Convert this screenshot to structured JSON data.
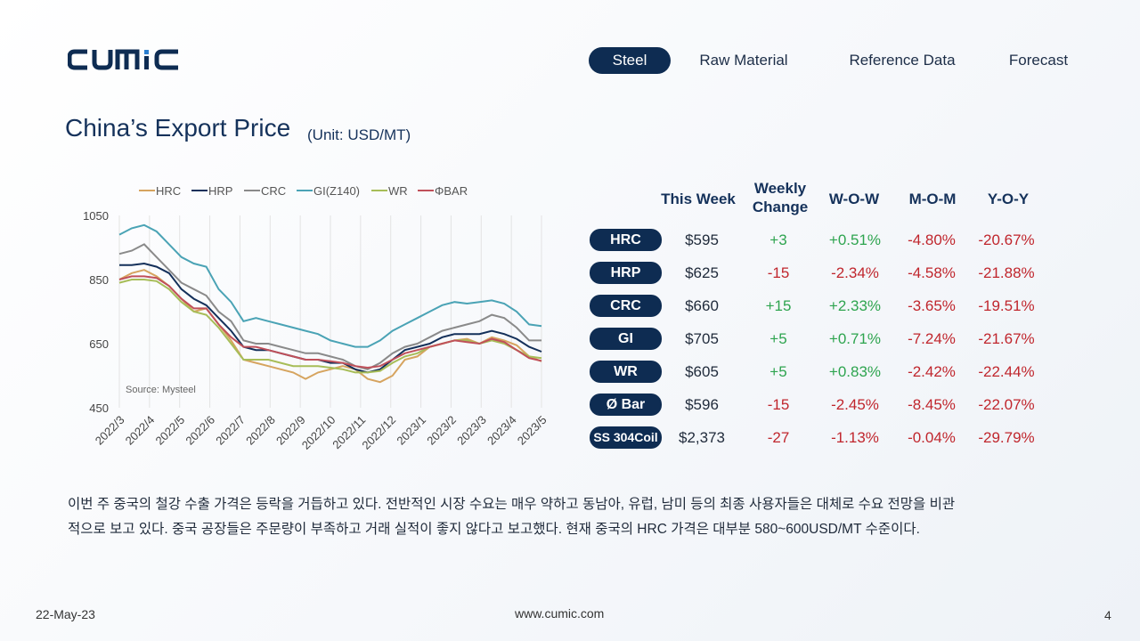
{
  "brand": {
    "logo_text": "CUMIC",
    "color": "#0e2c52"
  },
  "nav": {
    "items": [
      {
        "label": "Steel",
        "active": true
      },
      {
        "label": "Raw Material",
        "active": false
      },
      {
        "label": "Reference Data",
        "active": false
      },
      {
        "label": "Forecast",
        "active": false
      }
    ]
  },
  "page": {
    "title": "China’s Export Price",
    "unit": "(Unit: USD/MT)"
  },
  "chart_data": {
    "type": "line",
    "source": "Source: Mysteel",
    "ylim": [
      450,
      1050
    ],
    "yticks": [
      "1050",
      "850",
      "650",
      "450"
    ],
    "xticks": [
      "2022/3",
      "2022/4",
      "2022/5",
      "2022/6",
      "2022/7",
      "2022/8",
      "2022/9",
      "2022/10",
      "2022/11",
      "2022/12",
      "2023/1",
      "2023/2",
      "2023/3",
      "2023/4",
      "2023/5"
    ],
    "grid": "vertical",
    "legend_position": "top",
    "series": [
      {
        "name": "HRC",
        "color": "#d6a45f",
        "values": [
          850,
          870,
          880,
          860,
          830,
          790,
          750,
          760,
          710,
          660,
          600,
          590,
          580,
          570,
          560,
          540,
          560,
          570,
          580,
          570,
          540,
          530,
          550,
          600,
          610,
          640,
          650,
          660,
          665,
          650,
          670,
          660,
          645,
          610,
          595
        ]
      },
      {
        "name": "HRP",
        "color": "#14305a",
        "values": [
          895,
          895,
          900,
          890,
          870,
          820,
          790,
          770,
          730,
          690,
          640,
          630,
          630,
          620,
          610,
          600,
          600,
          590,
          590,
          570,
          560,
          570,
          600,
          630,
          640,
          650,
          670,
          680,
          680,
          680,
          690,
          680,
          665,
          640,
          625
        ]
      },
      {
        "name": "CRC",
        "color": "#8a8a8a",
        "values": [
          930,
          940,
          960,
          920,
          880,
          840,
          820,
          800,
          750,
          720,
          660,
          650,
          650,
          640,
          630,
          620,
          620,
          610,
          600,
          580,
          570,
          590,
          620,
          640,
          650,
          670,
          690,
          700,
          710,
          720,
          740,
          730,
          700,
          660,
          660
        ]
      },
      {
        "name": "GI(Z140)",
        "color": "#4aa3b5",
        "values": [
          990,
          1010,
          1020,
          1000,
          960,
          920,
          900,
          890,
          820,
          780,
          720,
          730,
          720,
          710,
          700,
          690,
          680,
          660,
          650,
          640,
          640,
          660,
          690,
          710,
          730,
          750,
          770,
          780,
          775,
          780,
          785,
          775,
          750,
          710,
          705
        ]
      },
      {
        "name": "WR",
        "color": "#a7bd58",
        "values": [
          840,
          850,
          850,
          845,
          820,
          780,
          750,
          740,
          700,
          650,
          600,
          600,
          600,
          590,
          580,
          580,
          580,
          575,
          570,
          560,
          560,
          565,
          590,
          610,
          620,
          640,
          650,
          660,
          660,
          650,
          660,
          650,
          630,
          610,
          605
        ]
      },
      {
        "name": "ΦBAR",
        "color": "#c0505a",
        "values": [
          850,
          860,
          860,
          855,
          830,
          790,
          760,
          760,
          710,
          670,
          640,
          640,
          630,
          620,
          610,
          600,
          600,
          595,
          590,
          580,
          575,
          580,
          600,
          620,
          630,
          640,
          650,
          660,
          655,
          650,
          665,
          655,
          630,
          605,
          596
        ]
      }
    ]
  },
  "table": {
    "headers": [
      "This Week",
      "Weekly Change",
      "W-O-W",
      "M-O-M",
      "Y-O-Y"
    ],
    "rows": [
      {
        "label": "HRC",
        "price": "$595",
        "change": "+3",
        "wow": "+0.51%",
        "mom": "-4.80%",
        "yoy": "-20.67%"
      },
      {
        "label": "HRP",
        "price": "$625",
        "change": "-15",
        "wow": "-2.34%",
        "mom": "-4.58%",
        "yoy": "-21.88%"
      },
      {
        "label": "CRC",
        "price": "$660",
        "change": "+15",
        "wow": "+2.33%",
        "mom": "-3.65%",
        "yoy": "-19.51%"
      },
      {
        "label": "GI",
        "price": "$705",
        "change": "+5",
        "wow": "+0.71%",
        "mom": "-7.24%",
        "yoy": "-21.67%"
      },
      {
        "label": "WR",
        "price": "$605",
        "change": "+5",
        "wow": "+0.83%",
        "mom": "-2.42%",
        "yoy": "-22.44%"
      },
      {
        "label": "Ø Bar",
        "price": "$596",
        "change": "-15",
        "wow": "-2.45%",
        "mom": "-8.45%",
        "yoy": "-22.07%"
      },
      {
        "label": "SS 304Coil",
        "price": "$2,373",
        "change": "-27",
        "wow": "-1.13%",
        "mom": "-0.04%",
        "yoy": "-29.79%"
      }
    ],
    "colors": {
      "positive": "#2ea44f",
      "negative": "#c0262d"
    }
  },
  "body": {
    "line1": "이번 주 중국의 철강 수출 가격은 등락을 거듭하고 있다. 전반적인 시장 수요는 매우 약하고 동남아, 유럽, 남미 등의 최종 사용자들은 대체로 수요 전망을 비관",
    "line2": "적으로 보고 있다. 중국 공장들은 주문량이 부족하고 거래 실적이 좋지 않다고 보고했다. 현재 중국의 HRC 가격은 대부분 580~600USD/MT 수준이다."
  },
  "footer": {
    "date": "22-May-23",
    "url": "www.cumic.com",
    "page": "4"
  }
}
